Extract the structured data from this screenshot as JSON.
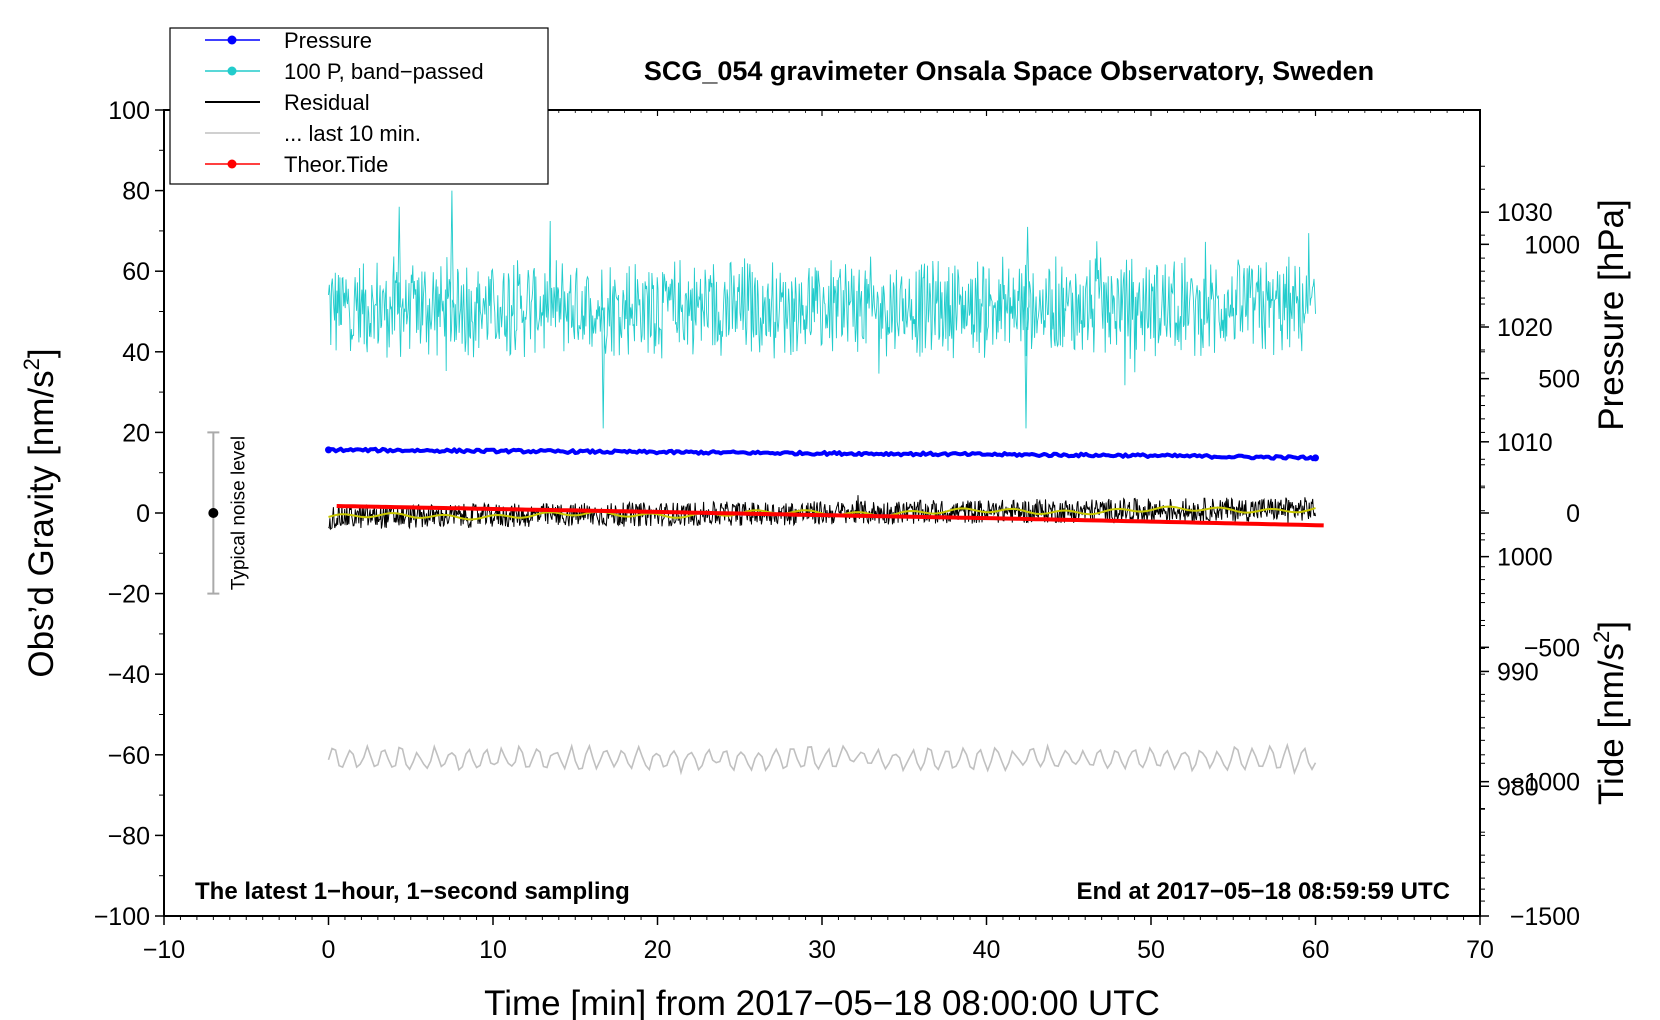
{
  "chart_data": {
    "type": "line",
    "title": "SCG_054 gravimeter Onsala Space Observatory, Sweden",
    "xlabel": "Time [min] from 2017−05−18 08:00:00 UTC",
    "ylabel_left": "Obs’d Gravity [nm/s",
    "ylabel_left_sup": "2",
    "ylabel_left_end": "]",
    "ylabel_right_pressure": "Pressure [hPa]",
    "ylabel_right_tide": "Tide [nm/s",
    "ylabel_right_tide_sup": "2",
    "ylabel_right_tide_end": "]",
    "xlim": [
      -10,
      70
    ],
    "ylim": [
      -100,
      100
    ],
    "pressure_axis_range": [
      968.7,
      1038.9
    ],
    "tide_axis_range": [
      -1500,
      1500
    ],
    "x_ticks": [
      -10,
      0,
      10,
      20,
      30,
      40,
      50,
      60,
      70
    ],
    "x_tick_labels": [
      "−10",
      "0",
      "10",
      "20",
      "30",
      "40",
      "50",
      "60",
      "70"
    ],
    "y_ticks": [
      -100,
      -80,
      -60,
      -40,
      -20,
      0,
      20,
      40,
      60,
      80,
      100
    ],
    "y_tick_labels": [
      "−100",
      "−80",
      "−60",
      "−40",
      "−20",
      "0",
      "20",
      "40",
      "60",
      "80",
      "100"
    ],
    "pressure_ticks": [
      980,
      990,
      1000,
      1010,
      1020,
      1030
    ],
    "pressure_tick_labels": [
      "980",
      "990",
      "1000",
      "1010",
      "1020",
      "1030"
    ],
    "tide_ticks": [
      -1500,
      -1000,
      -500,
      0,
      500,
      1000
    ],
    "tide_tick_labels": [
      "−1500",
      "−1000",
      "−500",
      "0",
      "500",
      "1000"
    ],
    "legend": {
      "position": "top-left",
      "entries": [
        {
          "label": "Pressure",
          "color": "#0000ff",
          "marker": true
        },
        {
          "label": "100 P, band−passed",
          "color": "#22cccc",
          "marker": true
        },
        {
          "label": "Residual",
          "color": "#000000",
          "marker": false
        },
        {
          "label": "... last 10 min.",
          "color": "#c0c0c0",
          "marker": false
        },
        {
          "label": "Theor.Tide",
          "color": "#ff0000",
          "marker": true
        }
      ]
    },
    "series": [
      {
        "name": "Pressure",
        "axis": "pressure",
        "color": "#0000ff",
        "x": [
          0,
          10,
          20,
          30,
          40,
          50,
          60
        ],
        "values": [
          1009.3,
          1009.2,
          1009.1,
          1009.0,
          1008.9,
          1008.8,
          1008.6
        ]
      },
      {
        "name": "100 P, band−passed",
        "axis": "left",
        "color": "#22cccc",
        "x_range": [
          0,
          60
        ],
        "mean": 51,
        "amplitude_typical": 10,
        "spikes": [
          {
            "x": 7.5,
            "y": 80
          },
          {
            "x": 16.7,
            "y": 21
          },
          {
            "x": 42.4,
            "y": 21
          },
          {
            "x": 4.3,
            "y": 76
          },
          {
            "x": 42.5,
            "y": 71
          }
        ]
      },
      {
        "name": "Residual",
        "axis": "left",
        "color": "#000000",
        "x_range": [
          0,
          60
        ],
        "mean_start": -1,
        "mean_end": 1,
        "amplitude_typical": 3
      },
      {
        "name": "Residual smoothed",
        "axis": "left",
        "color": "#c8c800",
        "x_range": [
          0,
          60
        ],
        "mean_start": -1,
        "mean_end": 1
      },
      {
        "name": "... last 10 min.",
        "axis": "left",
        "color": "#c0c0c0",
        "x_range": [
          0,
          60
        ],
        "mean": -61,
        "amplitude_typical": 2.5
      },
      {
        "name": "Theor.Tide",
        "axis": "tide",
        "color": "#ff0000",
        "x": [
          0.5,
          10,
          20,
          30,
          40,
          50,
          60.5
        ],
        "values": [
          26,
          15,
          4,
          -8,
          -19,
          -32,
          -46
        ]
      }
    ],
    "noise_bar": {
      "label": "Typical noise level",
      "x": -7,
      "center": 0,
      "low": -20,
      "high": 20
    },
    "annotations": {
      "left": "The latest 1−hour, 1−second sampling",
      "right": "End at 2017−05−18 08:59:59 UTC"
    }
  }
}
